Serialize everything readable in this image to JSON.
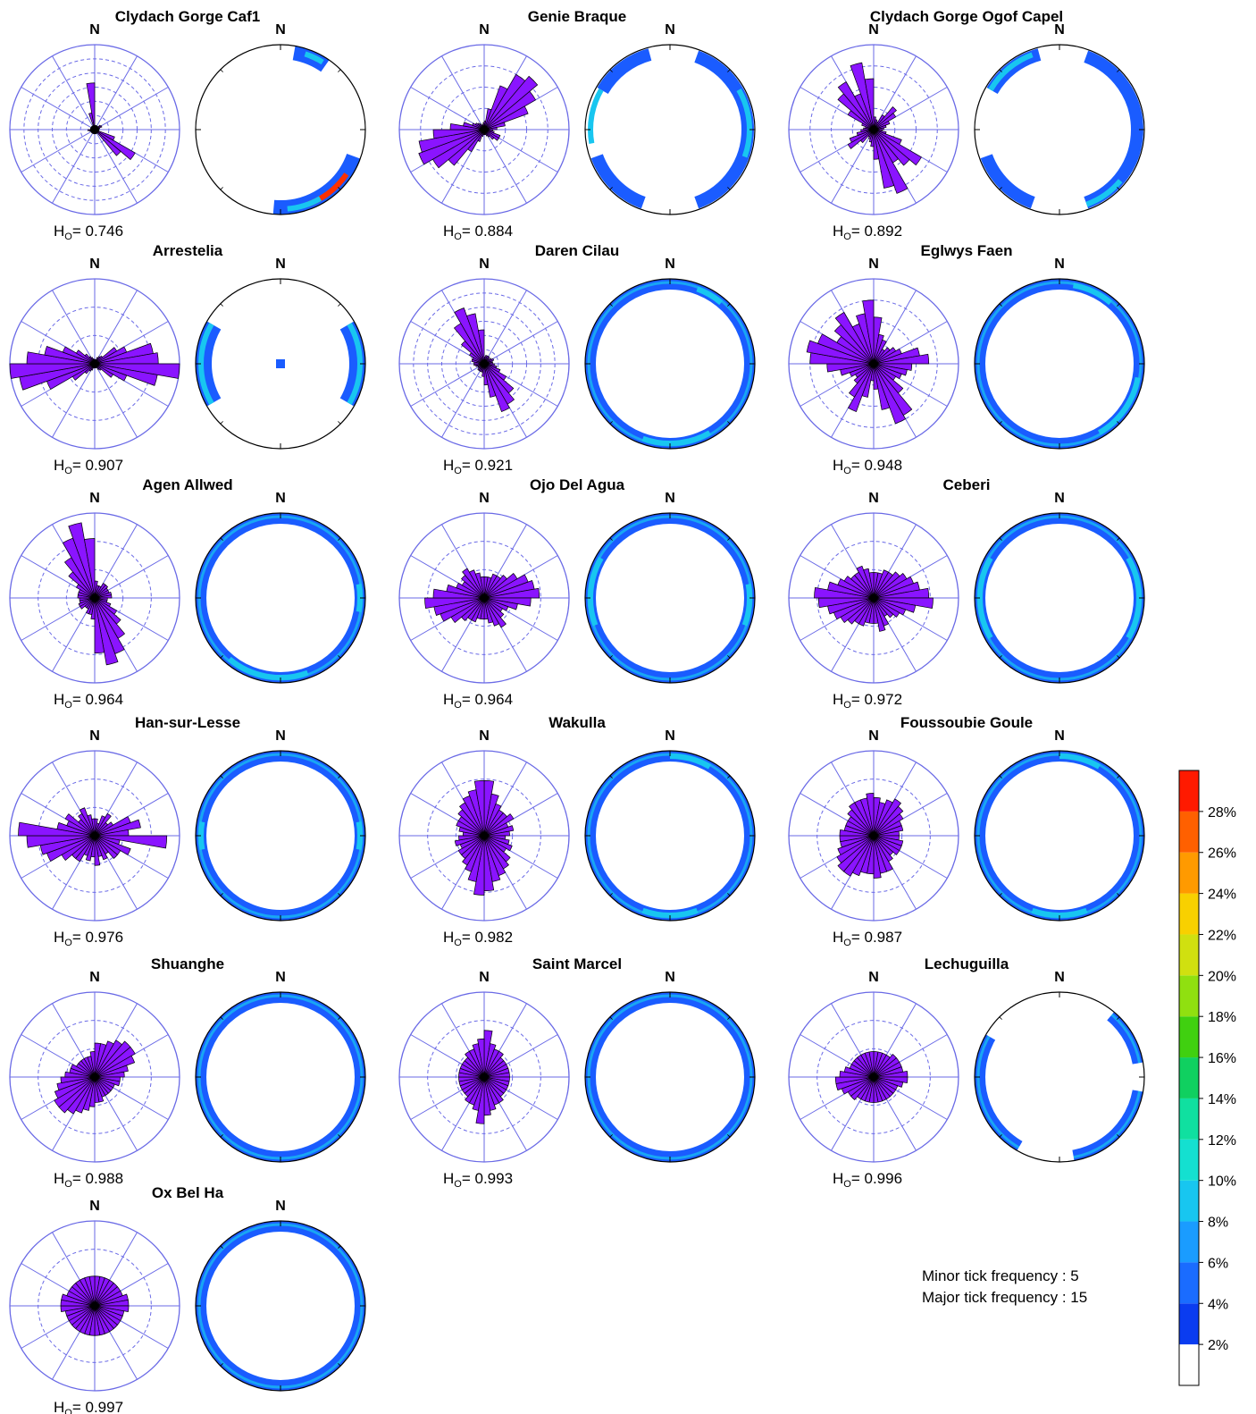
{
  "north_label": "N",
  "ho_symbol": "H",
  "ho_subscript": "O",
  "ho_sep": "= ",
  "notes": {
    "minor": "Minor tick frequency : 5",
    "major": "Major tick frequency : 15"
  },
  "colors": {
    "rose_fill": "#8a14ff",
    "rose_stroke": "#000000",
    "grid": "#6a6ae6",
    "contour_blue": "#1a5cff",
    "contour_cyan": "#18c6f0"
  },
  "chart_data": [
    {
      "type": "rose",
      "site": "Clydach Gorge Caf1",
      "ho": "0.746",
      "grid": "dashed",
      "rings": 6,
      "contours": {
        "shape": "crescent",
        "arcs": [
          [
            22,
            28,
            "#ff9a00"
          ],
          [
            124,
            160,
            "#ff3000"
          ],
          [
            150,
            175,
            "#18c6f0"
          ],
          [
            18,
            32,
            "#18c6f0"
          ]
        ]
      },
      "petals": [
        0.05,
        0.05,
        0.05,
        0.05,
        0.05,
        0.08,
        0.09,
        0.06,
        0.05,
        0.05,
        0.05,
        0.25,
        0.55,
        0.4,
        0.05,
        0.05,
        0.05,
        0.05,
        0.05,
        0.05,
        0.05,
        0.05,
        0.05,
        0.05,
        0.05,
        0.06,
        0.08,
        0.05,
        0.05,
        0.05,
        0.05,
        0.05,
        0.05,
        0.05,
        0.2,
        0.55
      ]
    },
    {
      "type": "rose",
      "site": "Genie Braque",
      "ho": "0.884",
      "grid": "dashed",
      "rings": 4,
      "contours": {
        "shape": "patchy",
        "arcs": [
          [
            60,
            110,
            "#18c6f0"
          ],
          [
            260,
            300,
            "#18c6f0"
          ]
        ]
      },
      "petals": [
        0.1,
        0.25,
        0.55,
        0.75,
        0.82,
        0.7,
        0.55,
        0.25,
        0.15,
        0.1,
        0.12,
        0.2,
        0.2,
        0.15,
        0.1,
        0.08,
        0.06,
        0.06,
        0.06,
        0.08,
        0.15,
        0.3,
        0.55,
        0.7,
        0.82,
        0.78,
        0.6,
        0.4,
        0.25,
        0.15,
        0.12,
        0.1,
        0.08,
        0.06,
        0.06,
        0.08
      ]
    },
    {
      "type": "rose",
      "site": "Clydach Gorge Ogof Capel",
      "ho": "0.892",
      "grid": "dashed",
      "rings": 4,
      "contours": {
        "shape": "patchy",
        "arcs": [
          [
            130,
            160,
            "#18c6f0"
          ],
          [
            300,
            340,
            "#18c6f0"
          ]
        ]
      },
      "petals": [
        0.15,
        0.12,
        0.1,
        0.2,
        0.35,
        0.3,
        0.2,
        0.15,
        0.12,
        0.1,
        0.15,
        0.35,
        0.65,
        0.55,
        0.45,
        0.8,
        0.7,
        0.35,
        0.2,
        0.15,
        0.12,
        0.1,
        0.2,
        0.35,
        0.3,
        0.2,
        0.15,
        0.12,
        0.1,
        0.15,
        0.35,
        0.55,
        0.65,
        0.45,
        0.8,
        0.6
      ]
    },
    {
      "type": "rose",
      "site": "Arrestelia",
      "ho": "0.907",
      "grid": "dashed",
      "rings": 3,
      "contours": {
        "shape": "sides",
        "arcs": [
          [
            60,
            120,
            "#18c6f0"
          ],
          [
            240,
            300,
            "#18c6f0"
          ]
        ]
      },
      "petals": [
        0.05,
        0.05,
        0.08,
        0.1,
        0.12,
        0.3,
        0.4,
        0.7,
        0.75,
        1.0,
        0.75,
        0.4,
        0.25,
        0.1,
        0.08,
        0.05,
        0.05,
        0.05,
        0.05,
        0.05,
        0.08,
        0.1,
        0.15,
        0.3,
        0.6,
        0.9,
        1.0,
        0.8,
        0.6,
        0.4,
        0.25,
        0.15,
        0.1,
        0.08,
        0.06,
        0.05
      ]
    },
    {
      "type": "rose",
      "site": "Daren Cilau",
      "ho": "0.921",
      "grid": "dashed",
      "rings": 6,
      "contours": {
        "shape": "ring",
        "arcs": [
          [
            150,
            200,
            "#18c6f0"
          ],
          [
            20,
            40,
            "#18c6f0"
          ]
        ]
      },
      "petals": [
        0.08,
        0.1,
        0.1,
        0.1,
        0.08,
        0.1,
        0.12,
        0.1,
        0.1,
        0.12,
        0.15,
        0.2,
        0.3,
        0.45,
        0.55,
        0.6,
        0.4,
        0.25,
        0.15,
        0.1,
        0.1,
        0.1,
        0.1,
        0.08,
        0.08,
        0.1,
        0.12,
        0.12,
        0.15,
        0.15,
        0.2,
        0.35,
        0.55,
        0.7,
        0.6,
        0.4
      ]
    },
    {
      "type": "rose",
      "site": "Eglwys Faen",
      "ho": "0.948",
      "grid": "dashed",
      "rings": 4,
      "contours": {
        "shape": "ring",
        "arcs": [
          [
            100,
            150,
            "#18c6f0"
          ],
          [
            10,
            40,
            "#18c6f0"
          ]
        ]
      },
      "petals": [
        0.55,
        0.35,
        0.3,
        0.2,
        0.25,
        0.3,
        0.35,
        0.55,
        0.65,
        0.45,
        0.4,
        0.35,
        0.3,
        0.45,
        0.7,
        0.75,
        0.55,
        0.3,
        0.2,
        0.4,
        0.6,
        0.45,
        0.3,
        0.25,
        0.3,
        0.4,
        0.55,
        0.75,
        0.8,
        0.7,
        0.5,
        0.6,
        0.7,
        0.5,
        0.6,
        0.75
      ]
    },
    {
      "type": "rose",
      "site": "Agen Allwed",
      "ho": "0.964",
      "grid": "dashed",
      "rings": 3,
      "contours": {
        "shape": "ring",
        "arcs": [
          [
            160,
            220,
            "#18c6f0"
          ],
          [
            80,
            100,
            "#18c6f0"
          ]
        ]
      },
      "petals": [
        0.2,
        0.15,
        0.15,
        0.2,
        0.2,
        0.18,
        0.18,
        0.2,
        0.2,
        0.15,
        0.15,
        0.2,
        0.3,
        0.4,
        0.55,
        0.7,
        0.8,
        0.65,
        0.25,
        0.2,
        0.2,
        0.15,
        0.15,
        0.2,
        0.2,
        0.18,
        0.18,
        0.2,
        0.2,
        0.2,
        0.25,
        0.4,
        0.55,
        0.75,
        0.9,
        0.7
      ]
    },
    {
      "type": "rose",
      "site": "Ojo Del Agua",
      "ho": "0.964",
      "grid": "dashed",
      "rings": 3,
      "contours": {
        "shape": "ring",
        "arcs": [
          [
            250,
            300,
            "#18c6f0"
          ],
          [
            80,
            110,
            "#18c6f0"
          ]
        ]
      },
      "petals": [
        0.25,
        0.25,
        0.3,
        0.3,
        0.35,
        0.45,
        0.55,
        0.6,
        0.65,
        0.55,
        0.4,
        0.3,
        0.25,
        0.3,
        0.4,
        0.35,
        0.3,
        0.25,
        0.25,
        0.25,
        0.3,
        0.3,
        0.35,
        0.45,
        0.55,
        0.6,
        0.7,
        0.6,
        0.45,
        0.35,
        0.3,
        0.35,
        0.4,
        0.35,
        0.3,
        0.25
      ]
    },
    {
      "type": "rose",
      "site": "Ceberi",
      "ho": "0.972",
      "grid": "dashed",
      "rings": 3,
      "contours": {
        "shape": "ring",
        "arcs": [
          [
            60,
            120,
            "#18c6f0"
          ],
          [
            240,
            300,
            "#18c6f0"
          ]
        ]
      },
      "petals": [
        0.3,
        0.3,
        0.35,
        0.35,
        0.4,
        0.45,
        0.5,
        0.55,
        0.65,
        0.7,
        0.5,
        0.4,
        0.35,
        0.3,
        0.25,
        0.35,
        0.4,
        0.3,
        0.3,
        0.3,
        0.35,
        0.35,
        0.4,
        0.45,
        0.5,
        0.55,
        0.65,
        0.7,
        0.55,
        0.45,
        0.4,
        0.35,
        0.35,
        0.4,
        0.35,
        0.3
      ]
    },
    {
      "type": "rose",
      "site": "Han-sur-Lesse",
      "ho": "0.976",
      "grid": "dashed",
      "rings": 3,
      "contours": {
        "shape": "ring",
        "arcs": [
          [
            80,
            100,
            "#18c6f0"
          ],
          [
            260,
            280,
            "#18c6f0"
          ]
        ]
      },
      "petals": [
        0.2,
        0.15,
        0.25,
        0.3,
        0.2,
        0.25,
        0.45,
        0.55,
        0.4,
        0.85,
        0.3,
        0.45,
        0.35,
        0.35,
        0.25,
        0.3,
        0.25,
        0.35,
        0.25,
        0.3,
        0.25,
        0.35,
        0.35,
        0.45,
        0.6,
        0.65,
        0.8,
        0.9,
        0.45,
        0.35,
        0.4,
        0.25,
        0.3,
        0.35,
        0.25,
        0.2
      ]
    },
    {
      "type": "rose",
      "site": "Wakulla",
      "ho": "0.982",
      "grid": "dashed",
      "rings": 3,
      "contours": {
        "shape": "ring",
        "arcs": [
          [
            0,
            30,
            "#18c6f0"
          ],
          [
            160,
            200,
            "#18c6f0"
          ]
        ]
      },
      "petals": [
        0.65,
        0.5,
        0.4,
        0.35,
        0.35,
        0.4,
        0.3,
        0.35,
        0.3,
        0.25,
        0.3,
        0.35,
        0.3,
        0.4,
        0.45,
        0.5,
        0.55,
        0.65,
        0.7,
        0.55,
        0.45,
        0.4,
        0.35,
        0.35,
        0.3,
        0.35,
        0.3,
        0.25,
        0.3,
        0.35,
        0.35,
        0.4,
        0.45,
        0.5,
        0.55,
        0.65
      ]
    },
    {
      "type": "rose",
      "site": "Foussoubie Goule",
      "ho": "0.987",
      "grid": "dashed",
      "rings": 3,
      "contours": {
        "shape": "ring",
        "arcs": [
          [
            0,
            30,
            "#18c6f0"
          ],
          [
            160,
            200,
            "#18c6f0"
          ]
        ]
      },
      "petals": [
        0.45,
        0.4,
        0.45,
        0.5,
        0.45,
        0.4,
        0.35,
        0.35,
        0.3,
        0.3,
        0.35,
        0.35,
        0.35,
        0.3,
        0.35,
        0.45,
        0.45,
        0.5,
        0.45,
        0.45,
        0.5,
        0.55,
        0.55,
        0.5,
        0.45,
        0.4,
        0.4,
        0.4,
        0.35,
        0.35,
        0.35,
        0.4,
        0.45,
        0.45,
        0.45,
        0.5
      ]
    },
    {
      "type": "rose",
      "site": "Shuanghe",
      "ho": "0.988",
      "grid": "dashed",
      "rings": 3,
      "contours": {
        "shape": "ring",
        "arcs": []
      },
      "petals": [
        0.4,
        0.4,
        0.45,
        0.5,
        0.55,
        0.55,
        0.5,
        0.4,
        0.35,
        0.3,
        0.3,
        0.25,
        0.25,
        0.25,
        0.25,
        0.25,
        0.3,
        0.3,
        0.35,
        0.4,
        0.45,
        0.5,
        0.55,
        0.55,
        0.5,
        0.45,
        0.4,
        0.35,
        0.3,
        0.3,
        0.25,
        0.25,
        0.25,
        0.25,
        0.25,
        0.3
      ]
    },
    {
      "type": "rose",
      "site": "Saint Marcel",
      "ho": "0.993",
      "grid": "dashed",
      "rings": 3,
      "contours": {
        "shape": "ring",
        "arcs": []
      },
      "petals": [
        0.55,
        0.4,
        0.35,
        0.35,
        0.3,
        0.3,
        0.3,
        0.3,
        0.3,
        0.3,
        0.3,
        0.3,
        0.3,
        0.3,
        0.35,
        0.35,
        0.4,
        0.45,
        0.55,
        0.4,
        0.35,
        0.35,
        0.3,
        0.3,
        0.3,
        0.3,
        0.3,
        0.3,
        0.3,
        0.3,
        0.3,
        0.3,
        0.35,
        0.35,
        0.4,
        0.45
      ]
    },
    {
      "type": "rose",
      "site": "Lechuguilla",
      "ho": "0.996",
      "grid": "dashed",
      "rings": 3,
      "contours": {
        "shape": "ring-broken",
        "arcs": []
      },
      "petals": [
        0.3,
        0.3,
        0.3,
        0.3,
        0.35,
        0.35,
        0.35,
        0.35,
        0.4,
        0.4,
        0.35,
        0.3,
        0.3,
        0.3,
        0.3,
        0.3,
        0.3,
        0.3,
        0.3,
        0.3,
        0.3,
        0.3,
        0.35,
        0.35,
        0.4,
        0.45,
        0.45,
        0.4,
        0.35,
        0.3,
        0.3,
        0.3,
        0.3,
        0.3,
        0.3,
        0.3
      ]
    },
    {
      "type": "rose",
      "site": "Ox Bel Ha",
      "ho": "0.997",
      "grid": "dashed",
      "rings": 3,
      "contours": {
        "shape": "ring",
        "arcs": []
      },
      "petals": [
        0.35,
        0.35,
        0.35,
        0.35,
        0.35,
        0.35,
        0.35,
        0.4,
        0.4,
        0.4,
        0.35,
        0.35,
        0.35,
        0.35,
        0.35,
        0.35,
        0.35,
        0.35,
        0.35,
        0.35,
        0.35,
        0.35,
        0.35,
        0.35,
        0.35,
        0.35,
        0.4,
        0.4,
        0.4,
        0.35,
        0.35,
        0.35,
        0.35,
        0.35,
        0.35,
        0.35
      ]
    }
  ],
  "colorbar": {
    "labels": [
      "2%",
      "4%",
      "6%",
      "8%",
      "10%",
      "12%",
      "14%",
      "16%",
      "18%",
      "20%",
      "22%",
      "24%",
      "26%",
      "28%"
    ],
    "colors": [
      "#ffffff",
      "#0a3cf0",
      "#1a6cff",
      "#1a9cff",
      "#18c6f0",
      "#14e0d0",
      "#10e0a0",
      "#10d060",
      "#40d010",
      "#90e010",
      "#d0e010",
      "#f8d000",
      "#ff9a00",
      "#ff6000",
      "#ff1a00"
    ]
  }
}
